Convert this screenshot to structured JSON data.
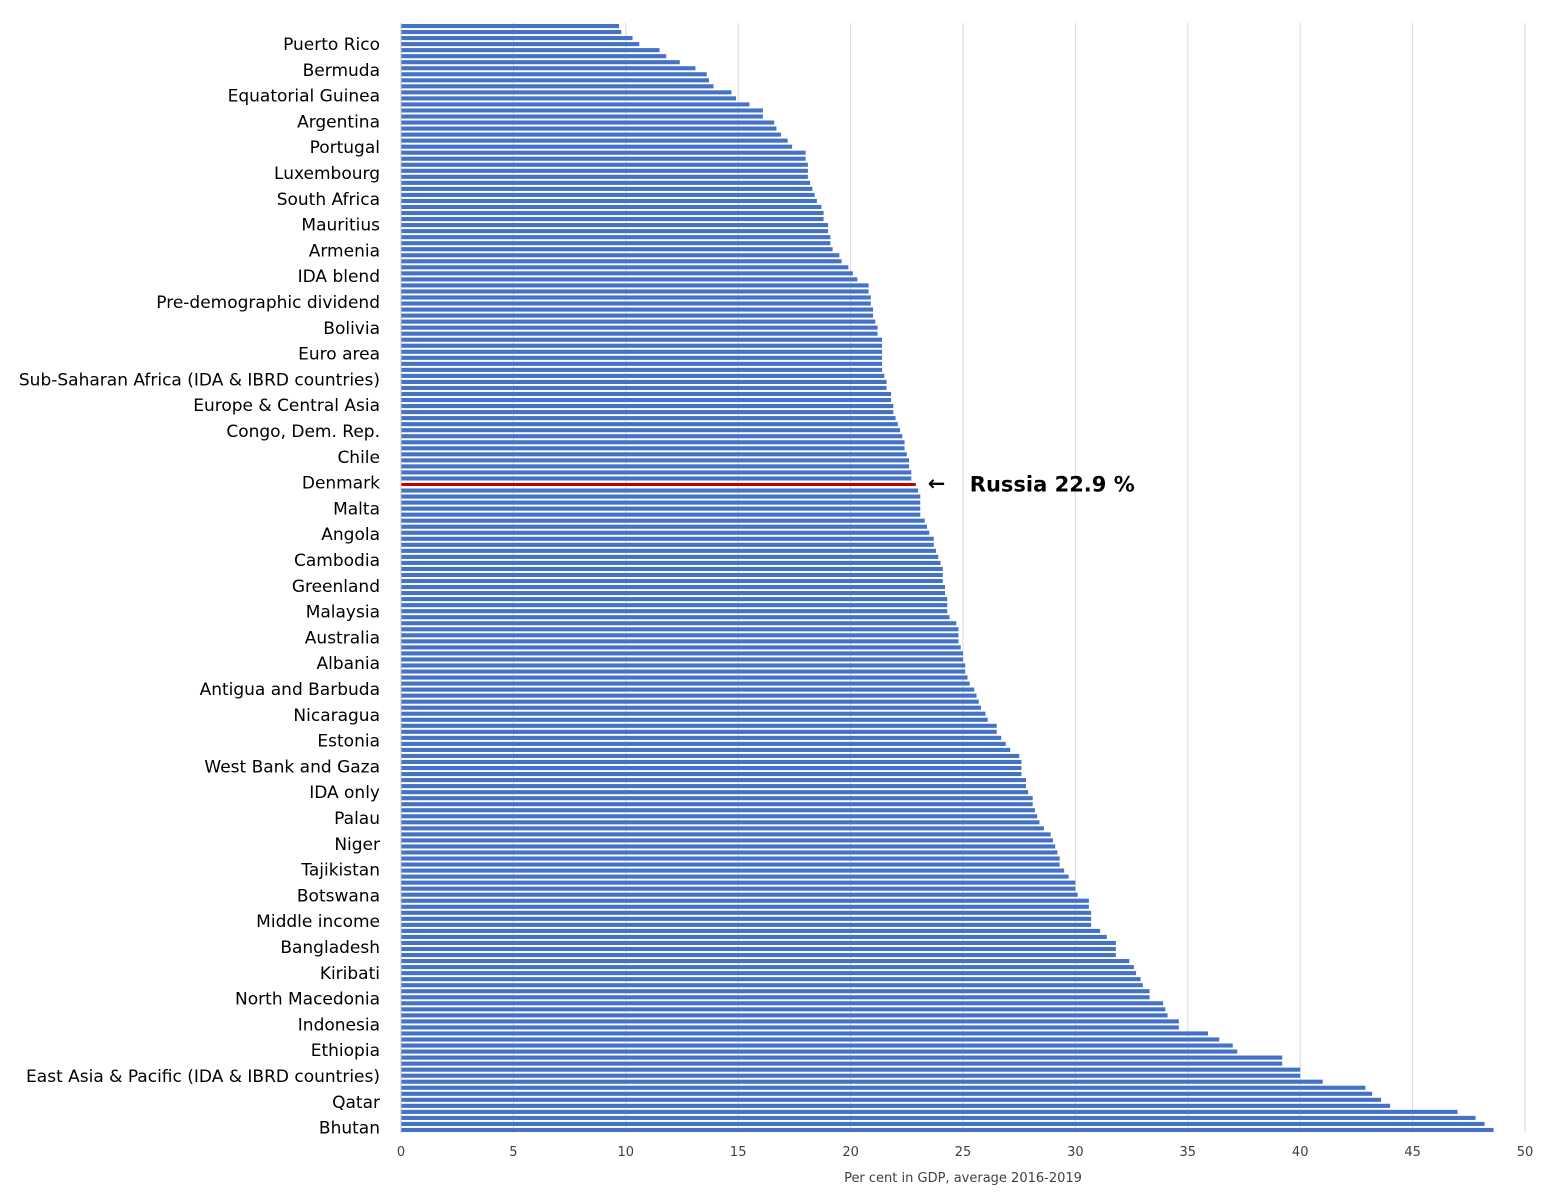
{
  "chart_data": {
    "type": "bar",
    "orientation": "horizontal",
    "xlabel": "Per cent in GDP, average 2016-2019",
    "xlim": [
      0,
      50
    ],
    "xticks": [
      0,
      5,
      10,
      15,
      20,
      25,
      30,
      35,
      40,
      45,
      50
    ],
    "grid": "vertical",
    "series_color": "#4472c4",
    "highlight_color": "#c00000",
    "category_labels": [
      "Puerto Rico",
      "Bermuda",
      "Equatorial Guinea",
      "Argentina",
      "Portugal",
      "Luxembourg",
      "South Africa",
      "Mauritius",
      "Armenia",
      "IDA blend",
      "Pre-demographic dividend",
      "Bolivia",
      "Euro area",
      "Sub-Saharan Africa (IDA & IBRD countries)",
      "Europe & Central Asia",
      "Congo, Dem. Rep.",
      "Chile",
      "Denmark",
      "Malta",
      "Angola",
      "Cambodia",
      "Greenland",
      "Malaysia",
      "Australia",
      "Albania",
      "Antigua and Barbuda",
      "Nicaragua",
      "Estonia",
      "West Bank and Gaza",
      "IDA only",
      "Palau",
      "Niger",
      "Tajikistan",
      "Botswana",
      "Middle income",
      "Bangladesh",
      "Kiribati",
      "North Macedonia",
      "Indonesia",
      "Ethiopia",
      "East Asia & Pacific (IDA & IBRD countries)",
      "Qatar",
      "Bhutan"
    ],
    "values": [
      9.7,
      9.8,
      10.3,
      10.6,
      11.5,
      11.8,
      12.4,
      13.1,
      13.6,
      13.7,
      13.9,
      14.7,
      14.9,
      15.5,
      16.1,
      16.1,
      16.6,
      16.7,
      16.9,
      17.2,
      17.4,
      18.0,
      18.0,
      18.1,
      18.1,
      18.1,
      18.2,
      18.3,
      18.4,
      18.5,
      18.7,
      18.8,
      18.8,
      19.0,
      19.0,
      19.1,
      19.1,
      19.2,
      19.5,
      19.6,
      19.9,
      20.1,
      20.3,
      20.8,
      20.8,
      20.9,
      20.9,
      21.0,
      21.0,
      21.1,
      21.2,
      21.2,
      21.4,
      21.4,
      21.4,
      21.4,
      21.4,
      21.4,
      21.5,
      21.6,
      21.6,
      21.8,
      21.8,
      21.9,
      21.9,
      22.0,
      22.1,
      22.2,
      22.3,
      22.4,
      22.4,
      22.5,
      22.6,
      22.6,
      22.7,
      22.7,
      22.9,
      23.0,
      23.1,
      23.1,
      23.1,
      23.1,
      23.3,
      23.4,
      23.5,
      23.7,
      23.7,
      23.8,
      23.9,
      24.0,
      24.1,
      24.1,
      24.1,
      24.2,
      24.2,
      24.3,
      24.3,
      24.3,
      24.4,
      24.7,
      24.8,
      24.8,
      24.8,
      24.9,
      25.0,
      25.0,
      25.1,
      25.1,
      25.2,
      25.3,
      25.5,
      25.6,
      25.7,
      25.8,
      26.0,
      26.1,
      26.5,
      26.5,
      26.7,
      26.9,
      27.1,
      27.5,
      27.6,
      27.6,
      27.6,
      27.8,
      27.8,
      27.9,
      28.1,
      28.1,
      28.2,
      28.3,
      28.4,
      28.6,
      28.9,
      29.0,
      29.1,
      29.2,
      29.3,
      29.3,
      29.5,
      29.7,
      30.0,
      30.0,
      30.1,
      30.6,
      30.6,
      30.7,
      30.7,
      30.7,
      31.1,
      31.4,
      31.8,
      31.8,
      31.8,
      32.4,
      32.6,
      32.7,
      32.9,
      33.0,
      33.3,
      33.3,
      33.9,
      34.0,
      34.1,
      34.6,
      34.6,
      35.9,
      36.4,
      37.0,
      37.2,
      39.2,
      39.2,
      40.0,
      40.0,
      41.0,
      42.9,
      43.2,
      43.6,
      44.0,
      47.0,
      47.8,
      48.2,
      48.6
    ],
    "highlight": {
      "index": 76,
      "value": 22.9
    },
    "annotations": [
      {
        "text": "Russia 22.9 %",
        "arrow": "←"
      }
    ]
  }
}
